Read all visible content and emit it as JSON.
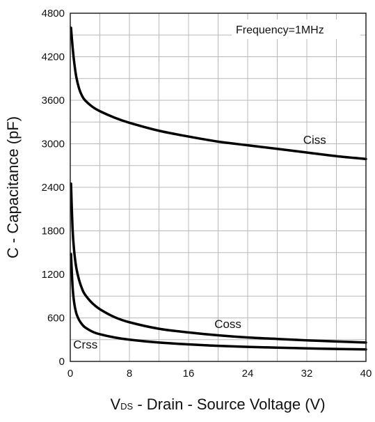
{
  "chart_data": {
    "type": "line",
    "xlabel": {
      "prefix": "V",
      "subscript": "DS",
      "rest": " - Drain - Source Voltage (V)"
    },
    "ylabel": "C - Capacitance (pF)",
    "annotation": "Frequency=1MHz",
    "xlim": [
      0,
      40
    ],
    "ylim": [
      0,
      4800
    ],
    "xticks": [
      0,
      8,
      16,
      24,
      32,
      40
    ],
    "yticks": [
      0,
      600,
      1200,
      1800,
      2400,
      3000,
      3600,
      4200,
      4800
    ],
    "x_minor_step": 4,
    "y_minor_step": 300,
    "grid": true,
    "colors": {
      "line": "#000000",
      "grid": "#b8b8b8",
      "frame": "#222222",
      "background": "#ffffff"
    },
    "series": [
      {
        "name": "Ciss",
        "x": [
          0.1,
          0.3,
          0.5,
          0.8,
          1.2,
          1.6,
          2,
          3,
          4,
          6,
          8,
          12,
          16,
          20,
          24,
          28,
          32,
          36,
          40
        ],
        "y": [
          4600,
          4350,
          4150,
          3930,
          3760,
          3660,
          3600,
          3510,
          3450,
          3360,
          3290,
          3180,
          3100,
          3030,
          2980,
          2930,
          2880,
          2830,
          2790
        ]
      },
      {
        "name": "Coss",
        "x": [
          0.1,
          0.3,
          0.5,
          0.8,
          1.2,
          1.6,
          2,
          3,
          4,
          6,
          8,
          12,
          16,
          20,
          24,
          28,
          32,
          36,
          40
        ],
        "y": [
          2450,
          1850,
          1550,
          1300,
          1120,
          1000,
          920,
          800,
          720,
          610,
          540,
          450,
          400,
          360,
          330,
          310,
          290,
          275,
          260
        ]
      },
      {
        "name": "Crss",
        "x": [
          0.1,
          0.3,
          0.5,
          0.8,
          1.2,
          1.6,
          2,
          3,
          4,
          6,
          8,
          12,
          16,
          20,
          24,
          28,
          32,
          36,
          40
        ],
        "y": [
          1480,
          1050,
          830,
          670,
          570,
          510,
          470,
          410,
          375,
          330,
          300,
          260,
          235,
          215,
          200,
          190,
          180,
          172,
          165
        ]
      }
    ],
    "series_labels": [
      {
        "text": "Ciss",
        "x": 31.5,
        "y": 3000
      },
      {
        "text": "Coss",
        "x": 19.5,
        "y": 460
      },
      {
        "text": "Crss",
        "x": 0.4,
        "y": 180
      }
    ]
  }
}
